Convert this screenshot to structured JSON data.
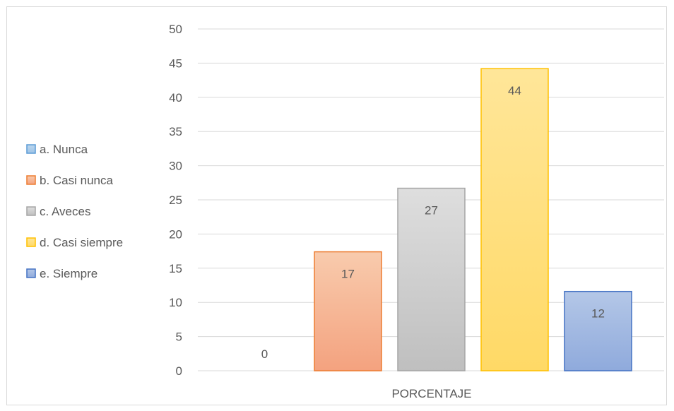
{
  "chart_data": {
    "type": "bar",
    "title": "",
    "xlabel": "",
    "ylabel": "",
    "category_label": "PORCENTAJE",
    "ylim": [
      0,
      50
    ],
    "yticks": [
      0,
      5,
      10,
      15,
      20,
      25,
      30,
      35,
      40,
      45,
      50
    ],
    "grid": true,
    "legend_position": "left",
    "series": [
      {
        "name": "a. Nunca",
        "value": 0,
        "label": "0",
        "fill_top": "#bdd7ee",
        "fill_bottom": "#9dc3e6",
        "stroke": "#5b9bd5"
      },
      {
        "name": "b. Casi nunca",
        "value": 17.4,
        "label": "17",
        "fill_top": "#f8cbad",
        "fill_bottom": "#f4a27f",
        "stroke": "#ed7d31"
      },
      {
        "name": "c. Aveces",
        "value": 26.7,
        "label": "27",
        "fill_top": "#dedede",
        "fill_bottom": "#bfbfbf",
        "stroke": "#a5a5a5"
      },
      {
        "name": "d. Casi siempre",
        "value": 44.2,
        "label": "44",
        "fill_top": "#ffe699",
        "fill_bottom": "#ffd966",
        "stroke": "#ffc000"
      },
      {
        "name": "e. Siempre",
        "value": 11.6,
        "label": "12",
        "fill_top": "#b4c7e7",
        "fill_bottom": "#8faadc",
        "stroke": "#4472c4"
      }
    ]
  }
}
